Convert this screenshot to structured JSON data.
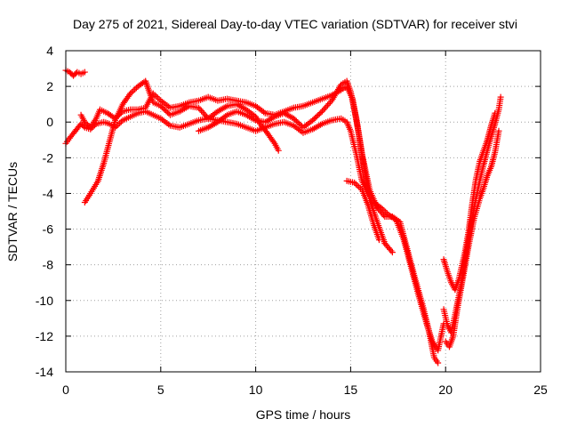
{
  "chart_data": {
    "type": "scatter",
    "title": "Day 275 of 2021, Sidereal Day-to-day VTEC variation (SDTVAR) for receiver stvi",
    "xlabel": "GPS time / hours",
    "ylabel": "SDTVAR / TECUs",
    "xlim": [
      0,
      25
    ],
    "ylim": [
      -14,
      4
    ],
    "xticks": [
      0,
      5,
      10,
      15,
      20,
      25
    ],
    "yticks": [
      -14,
      -12,
      -10,
      -8,
      -6,
      -4,
      -2,
      0,
      2,
      4
    ],
    "grid": true,
    "marker": "+",
    "color": "#ff0000",
    "series": [
      {
        "points": [
          [
            0.0,
            2.9
          ],
          [
            0.2,
            2.8
          ],
          [
            0.4,
            2.6
          ],
          [
            0.6,
            2.8
          ],
          [
            0.8,
            2.7
          ],
          [
            1.0,
            2.8
          ]
        ]
      },
      {
        "points": [
          [
            0.0,
            -1.2
          ],
          [
            0.2,
            -0.9
          ],
          [
            0.5,
            -0.5
          ],
          [
            0.8,
            -0.1
          ],
          [
            1.0,
            -0.3
          ],
          [
            1.3,
            -0.4
          ],
          [
            1.6,
            -0.1
          ],
          [
            2.0,
            0.0
          ],
          [
            2.3,
            -0.1
          ],
          [
            2.6,
            -0.3
          ],
          [
            3.0,
            0.1
          ],
          [
            3.4,
            0.3
          ],
          [
            3.8,
            0.5
          ],
          [
            4.2,
            0.6
          ],
          [
            4.6,
            0.4
          ],
          [
            5.0,
            0.2
          ],
          [
            5.5,
            -0.2
          ],
          [
            6.0,
            -0.3
          ],
          [
            6.5,
            -0.1
          ],
          [
            7.0,
            0.1
          ],
          [
            7.5,
            0.2
          ],
          [
            8.0,
            0.1
          ],
          [
            8.5,
            0.0
          ],
          [
            9.0,
            -0.1
          ],
          [
            9.5,
            -0.3
          ],
          [
            10.0,
            -0.5
          ],
          [
            10.5,
            -0.3
          ],
          [
            11.0,
            -0.1
          ],
          [
            11.5,
            0.0
          ],
          [
            12.0,
            -0.2
          ],
          [
            12.5,
            -0.6
          ],
          [
            13.0,
            -0.4
          ],
          [
            13.5,
            -0.1
          ],
          [
            14.0,
            0.1
          ],
          [
            14.5,
            0.2
          ],
          [
            14.8,
            0.0
          ],
          [
            15.0,
            -0.5
          ],
          [
            15.3,
            -1.8
          ],
          [
            15.6,
            -3.3
          ],
          [
            15.9,
            -4.0
          ],
          [
            16.2,
            -4.5
          ],
          [
            16.6,
            -4.8
          ],
          [
            17.0,
            -5.2
          ],
          [
            17.4,
            -5.5
          ],
          [
            17.8,
            -6.6
          ],
          [
            18.2,
            -8.2
          ],
          [
            18.6,
            -9.8
          ],
          [
            19.0,
            -11.3
          ],
          [
            19.3,
            -12.3
          ],
          [
            19.6,
            -12.8
          ],
          [
            19.9,
            -11.3
          ]
        ]
      },
      {
        "points": [
          [
            0.8,
            0.4
          ],
          [
            1.0,
            0.0
          ],
          [
            1.3,
            -0.3
          ],
          [
            1.6,
            0.2
          ],
          [
            1.8,
            0.7
          ],
          [
            2.2,
            0.5
          ],
          [
            2.6,
            0.2
          ],
          [
            3.0,
            0.6
          ],
          [
            3.4,
            0.7
          ],
          [
            3.8,
            0.7
          ],
          [
            4.2,
            0.8
          ],
          [
            4.6,
            1.6
          ],
          [
            5.0,
            1.2
          ],
          [
            5.5,
            0.8
          ],
          [
            6.0,
            0.9
          ],
          [
            6.5,
            1.1
          ],
          [
            7.0,
            1.2
          ],
          [
            7.5,
            1.4
          ],
          [
            8.0,
            1.2
          ],
          [
            8.5,
            1.3
          ],
          [
            9.0,
            1.2
          ],
          [
            9.5,
            1.1
          ],
          [
            10.0,
            0.9
          ],
          [
            10.5,
            0.5
          ],
          [
            11.0,
            0.4
          ],
          [
            11.5,
            0.6
          ],
          [
            12.0,
            0.8
          ],
          [
            12.5,
            0.9
          ],
          [
            13.0,
            1.1
          ],
          [
            13.5,
            1.3
          ],
          [
            14.0,
            1.5
          ],
          [
            14.5,
            1.8
          ],
          [
            14.8,
            2.0
          ],
          [
            15.1,
            1.3
          ],
          [
            15.4,
            -0.5
          ],
          [
            15.7,
            -2.5
          ],
          [
            16.0,
            -4.3
          ],
          [
            16.4,
            -5.6
          ],
          [
            16.8,
            -6.8
          ],
          [
            17.2,
            -7.3
          ]
        ]
      },
      {
        "points": [
          [
            1.0,
            -4.5
          ],
          [
            1.3,
            -4.0
          ],
          [
            1.7,
            -3.3
          ],
          [
            2.0,
            -2.3
          ],
          [
            2.3,
            -1.1
          ],
          [
            2.6,
            0.1
          ],
          [
            3.0,
            1.0
          ],
          [
            3.4,
            1.6
          ],
          [
            3.8,
            2.0
          ],
          [
            4.2,
            2.3
          ],
          [
            4.6,
            1.1
          ],
          [
            5.0,
            0.9
          ],
          [
            5.5,
            0.4
          ],
          [
            6.0,
            0.6
          ],
          [
            6.5,
            0.9
          ],
          [
            7.0,
            0.8
          ],
          [
            7.5,
            0.2
          ],
          [
            8.0,
            0.6
          ],
          [
            8.5,
            0.9
          ],
          [
            9.0,
            1.0
          ],
          [
            9.5,
            0.7
          ],
          [
            10.0,
            0.3
          ],
          [
            10.3,
            -0.2
          ],
          [
            10.6,
            -0.6
          ],
          [
            11.0,
            -1.2
          ],
          [
            11.2,
            -1.6
          ]
        ]
      },
      {
        "points": [
          [
            7.0,
            -0.5
          ],
          [
            7.5,
            -0.3
          ],
          [
            8.0,
            0.0
          ],
          [
            8.5,
            0.4
          ],
          [
            9.0,
            0.6
          ],
          [
            9.5,
            0.4
          ],
          [
            10.0,
            0.1
          ],
          [
            10.5,
            0.0
          ],
          [
            11.0,
            0.3
          ],
          [
            11.5,
            0.5
          ],
          [
            12.0,
            0.2
          ],
          [
            12.5,
            -0.3
          ],
          [
            13.0,
            0.1
          ],
          [
            13.5,
            0.6
          ],
          [
            14.0,
            1.2
          ],
          [
            14.5,
            2.1
          ],
          [
            14.8,
            2.3
          ],
          [
            15.0,
            1.7
          ],
          [
            15.3,
            0.2
          ],
          [
            15.6,
            -1.8
          ],
          [
            16.0,
            -3.8
          ],
          [
            16.4,
            -4.8
          ],
          [
            16.8,
            -5.3
          ],
          [
            17.2,
            -5.3
          ],
          [
            17.6,
            -5.6
          ],
          [
            18.0,
            -7.2
          ],
          [
            18.4,
            -8.8
          ],
          [
            18.8,
            -10.3
          ],
          [
            19.1,
            -11.6
          ],
          [
            19.4,
            -13.2
          ],
          [
            19.6,
            -13.5
          ]
        ]
      },
      {
        "points": [
          [
            14.8,
            -3.3
          ],
          [
            15.2,
            -3.4
          ],
          [
            15.6,
            -3.8
          ],
          [
            15.9,
            -4.6
          ],
          [
            16.2,
            -5.7
          ],
          [
            16.5,
            -6.6
          ]
        ]
      },
      {
        "points": [
          [
            19.9,
            -7.7
          ],
          [
            20.1,
            -8.4
          ],
          [
            20.3,
            -9.0
          ],
          [
            20.5,
            -9.4
          ],
          [
            20.7,
            -8.8
          ],
          [
            21.0,
            -7.4
          ],
          [
            21.2,
            -6.2
          ],
          [
            21.4,
            -4.6
          ],
          [
            21.6,
            -3.2
          ],
          [
            21.8,
            -2.2
          ],
          [
            22.0,
            -1.6
          ],
          [
            22.2,
            -1.0
          ],
          [
            22.4,
            -0.2
          ],
          [
            22.6,
            0.5
          ]
        ]
      },
      {
        "points": [
          [
            19.9,
            -10.5
          ],
          [
            20.1,
            -11.4
          ],
          [
            20.3,
            -11.8
          ],
          [
            20.5,
            -10.8
          ],
          [
            20.8,
            -9.2
          ],
          [
            21.0,
            -7.8
          ],
          [
            21.2,
            -6.6
          ],
          [
            21.4,
            -5.4
          ],
          [
            21.6,
            -4.3
          ],
          [
            21.8,
            -3.3
          ],
          [
            22.0,
            -2.4
          ],
          [
            22.2,
            -1.6
          ],
          [
            22.4,
            -0.8
          ],
          [
            22.6,
            -0.1
          ],
          [
            22.8,
            0.7
          ],
          [
            22.9,
            1.4
          ]
        ]
      },
      {
        "points": [
          [
            20.0,
            -12.3
          ],
          [
            20.2,
            -12.6
          ],
          [
            20.4,
            -12.0
          ],
          [
            20.6,
            -10.6
          ],
          [
            20.9,
            -8.8
          ],
          [
            21.2,
            -7.0
          ],
          [
            21.5,
            -5.4
          ],
          [
            21.8,
            -4.3
          ],
          [
            22.0,
            -3.7
          ],
          [
            22.2,
            -3.0
          ],
          [
            22.4,
            -2.5
          ],
          [
            22.6,
            -1.7
          ],
          [
            22.8,
            -0.5
          ]
        ]
      }
    ]
  }
}
